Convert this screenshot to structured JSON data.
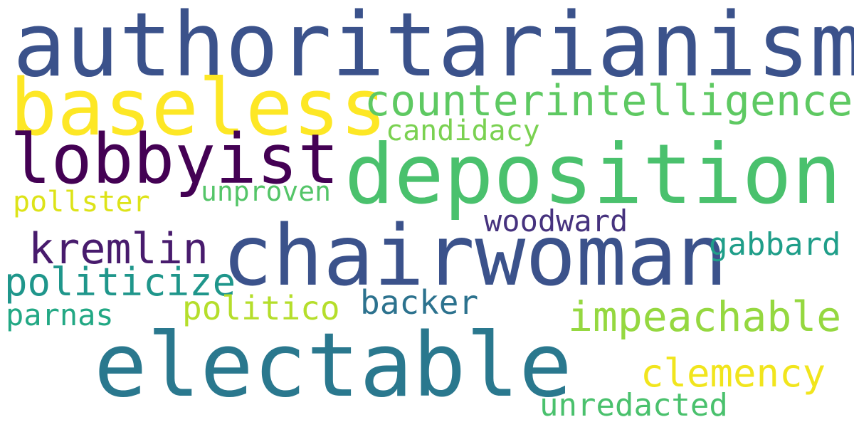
{
  "words": [
    {
      "key": "authoritarianism",
      "text": "authoritarianism",
      "color": "#3b528b"
    },
    {
      "key": "baseless",
      "text": "baseless",
      "color": "#fde725"
    },
    {
      "key": "counterintelligence",
      "text": "counterintelligence",
      "color": "#5ec962"
    },
    {
      "key": "candidacy",
      "text": "candidacy",
      "color": "#7ad151"
    },
    {
      "key": "lobbyist",
      "text": "lobbyist",
      "color": "#440154"
    },
    {
      "key": "deposition",
      "text": "deposition",
      "color": "#4ac16d"
    },
    {
      "key": "pollster",
      "text": "pollster",
      "color": "#dde318"
    },
    {
      "key": "unproven",
      "text": "unproven",
      "color": "#54c568"
    },
    {
      "key": "woodward",
      "text": "woodward",
      "color": "#46327e"
    },
    {
      "key": "kremlin",
      "text": "kremlin",
      "color": "#481b6d"
    },
    {
      "key": "chairwoman",
      "text": "chairwoman",
      "color": "#3b528b"
    },
    {
      "key": "gabbard",
      "text": "gabbard",
      "color": "#1f9e89"
    },
    {
      "key": "politicize",
      "text": "politicize",
      "color": "#1f968b"
    },
    {
      "key": "backer",
      "text": "backer",
      "color": "#2c728e"
    },
    {
      "key": "politico",
      "text": "politico",
      "color": "#b5de2b"
    },
    {
      "key": "impeachable",
      "text": "impeachable",
      "color": "#95d840"
    },
    {
      "key": "parnas",
      "text": "parnas",
      "color": "#22a884"
    },
    {
      "key": "electable",
      "text": "electable",
      "color": "#2a788e"
    },
    {
      "key": "clemency",
      "text": "clemency",
      "color": "#f1e51d"
    },
    {
      "key": "unredacted",
      "text": "unredacted",
      "color": "#4ac16d"
    }
  ]
}
